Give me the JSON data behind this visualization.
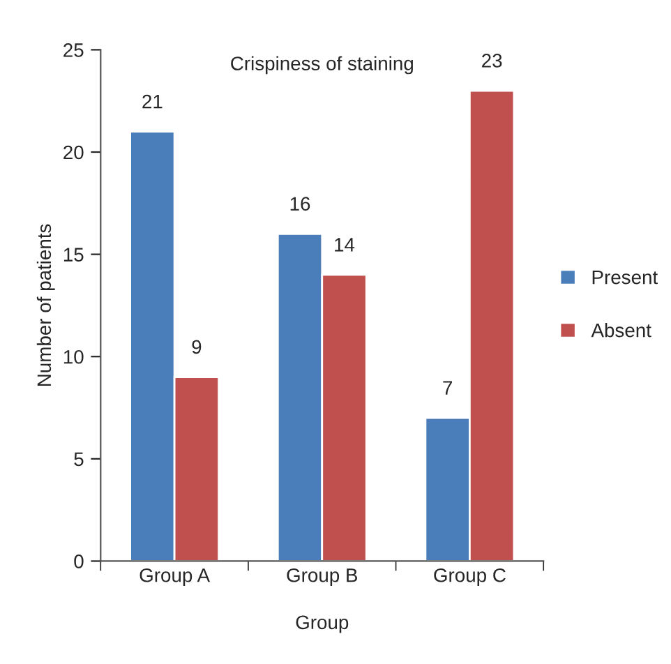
{
  "chart_data": {
    "type": "bar",
    "title": "Crispiness of staining",
    "xlabel": "Group",
    "ylabel": "Number of patients",
    "categories": [
      "Group A",
      "Group B",
      "Group C"
    ],
    "series": [
      {
        "name": "Present",
        "color": "#4a7ebb",
        "values": [
          21,
          16,
          7
        ]
      },
      {
        "name": "Absent",
        "color": "#c0504d",
        "values": [
          9,
          14,
          23
        ]
      }
    ],
    "ylim": [
      0,
      25
    ],
    "yticks": [
      0,
      5,
      10,
      15,
      20,
      25
    ],
    "data_labels": true,
    "legend": "right",
    "grid": false
  }
}
